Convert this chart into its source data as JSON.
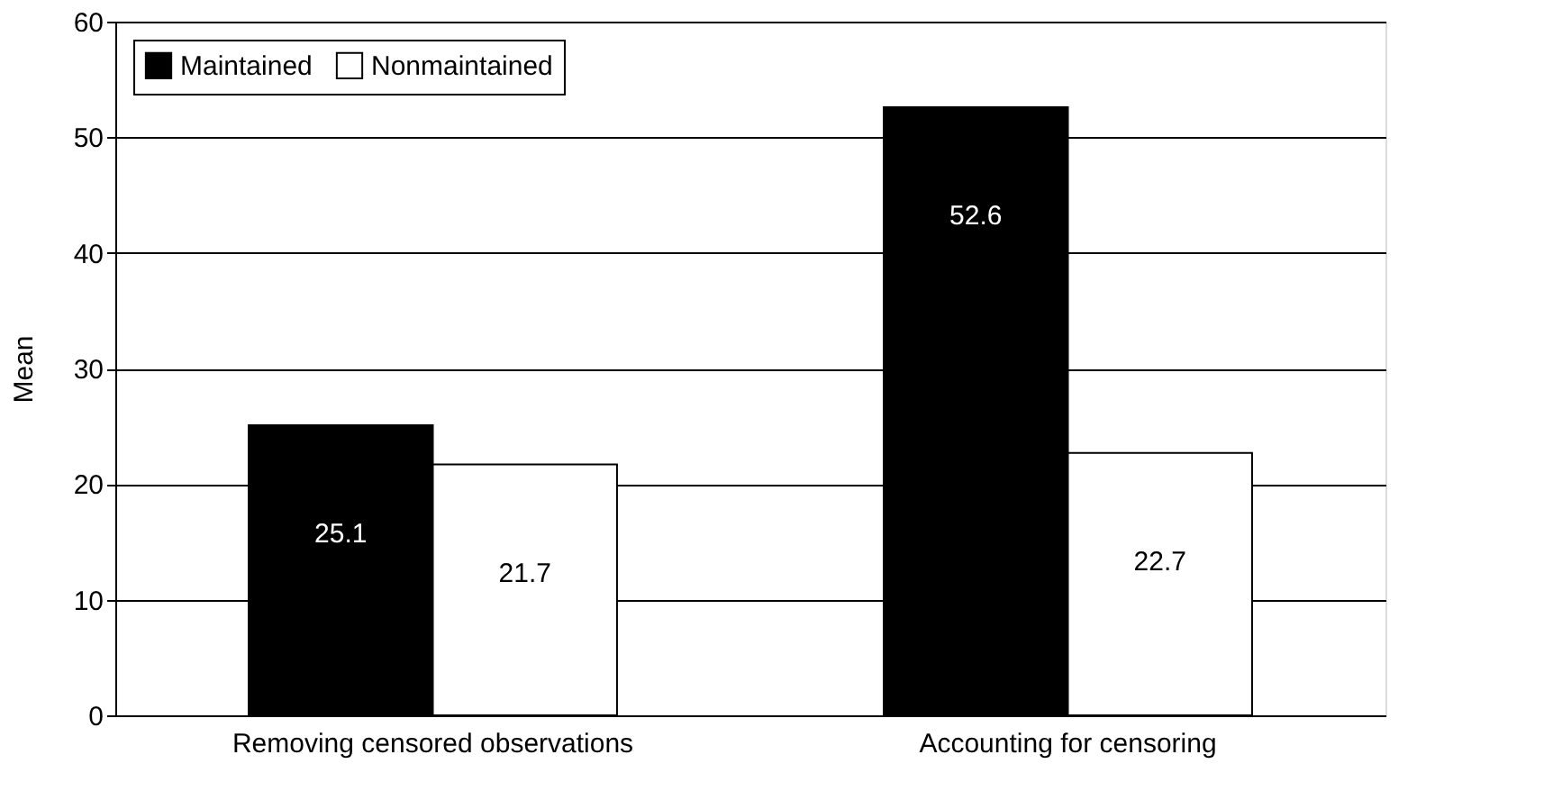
{
  "chart_data": {
    "type": "bar",
    "ylabel": "Mean",
    "categories": [
      "Removing censored observations",
      "Accounting for censoring"
    ],
    "series": [
      {
        "name": "Maintained",
        "color": "#000000",
        "values": [
          25.1,
          52.6
        ]
      },
      {
        "name": "Nonmaintained",
        "color": "#ffffff",
        "values": [
          21.7,
          22.7
        ]
      }
    ],
    "ylim": [
      0,
      60
    ],
    "yticks": [
      0,
      10,
      20,
      30,
      40,
      50,
      60
    ],
    "grid": "y",
    "legend": "top left",
    "data_labels": true
  }
}
